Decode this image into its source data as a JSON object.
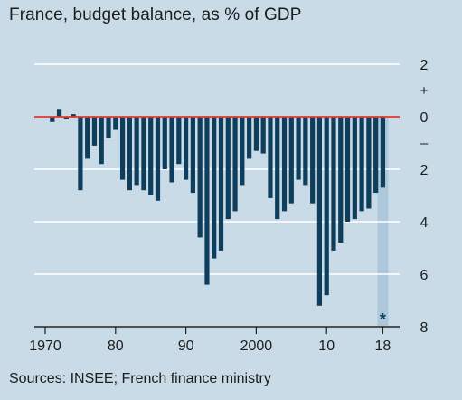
{
  "title": "France, budget balance, as % of GDP",
  "source": "Sources: INSEE; French finance ministry",
  "colors": {
    "background": "#c8dbe7",
    "bar": "#0f3d5c",
    "forecast_shade": "#aec8db",
    "zero_line": "#e2382f",
    "grid": "#ffffff",
    "text": "#1c1c1c"
  },
  "chart_data": {
    "type": "bar",
    "title": "France, budget balance, as % of GDP",
    "xlabel": "",
    "ylabel": "",
    "y_inverted_deficit": true,
    "ylim": [
      -8,
      2
    ],
    "y_ticks": [
      2,
      0,
      -2,
      -4,
      -6,
      -8
    ],
    "y_tick_labels": [
      "2",
      "0",
      "2",
      "4",
      "6",
      "8"
    ],
    "y_sign_labels": [
      "+",
      "–"
    ],
    "x_ticks": [
      1970,
      1980,
      1990,
      2000,
      2010,
      2018
    ],
    "x_tick_labels": [
      "1970",
      "80",
      "90",
      "2000",
      "10",
      "18"
    ],
    "grid": true,
    "forecast_years": [
      2018
    ],
    "forecast_marker": "*",
    "x": [
      1970,
      1971,
      1972,
      1973,
      1974,
      1975,
      1976,
      1977,
      1978,
      1979,
      1980,
      1981,
      1982,
      1983,
      1984,
      1985,
      1986,
      1987,
      1988,
      1989,
      1990,
      1991,
      1992,
      1993,
      1994,
      1995,
      1996,
      1997,
      1998,
      1999,
      2000,
      2001,
      2002,
      2003,
      2004,
      2005,
      2006,
      2007,
      2008,
      2009,
      2010,
      2011,
      2012,
      2013,
      2014,
      2015,
      2016,
      2017,
      2018
    ],
    "values": [
      0.0,
      -0.2,
      0.3,
      -0.1,
      0.1,
      -2.8,
      -1.6,
      -1.1,
      -1.8,
      -0.8,
      -0.5,
      -2.4,
      -2.8,
      -2.6,
      -2.8,
      -3.0,
      -3.2,
      -2.0,
      -2.5,
      -1.8,
      -2.4,
      -2.9,
      -4.6,
      -6.4,
      -5.4,
      -5.1,
      -3.9,
      -3.6,
      -2.6,
      -1.6,
      -1.3,
      -1.4,
      -3.1,
      -3.9,
      -3.6,
      -3.3,
      -2.4,
      -2.6,
      -3.3,
      -7.2,
      -6.8,
      -5.1,
      -4.8,
      -4.0,
      -3.9,
      -3.6,
      -3.5,
      -2.9,
      -2.7
    ]
  }
}
